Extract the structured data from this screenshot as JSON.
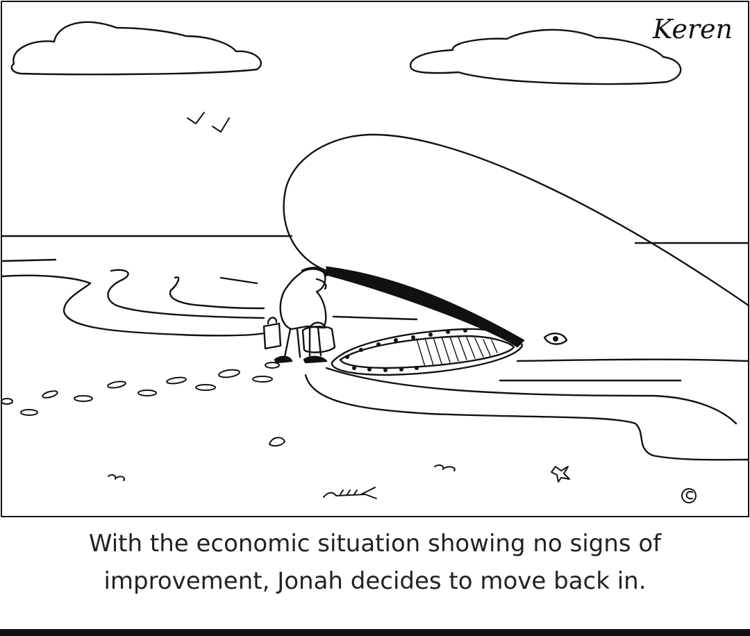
{
  "cartoon": {
    "signature": "Keren",
    "caption_line_1": "With the economic situation showing no signs of",
    "caption_line_2": "improvement, Jonah decides to move back in.",
    "ink_color": "#111111",
    "paper_color": "#ffffff"
  }
}
